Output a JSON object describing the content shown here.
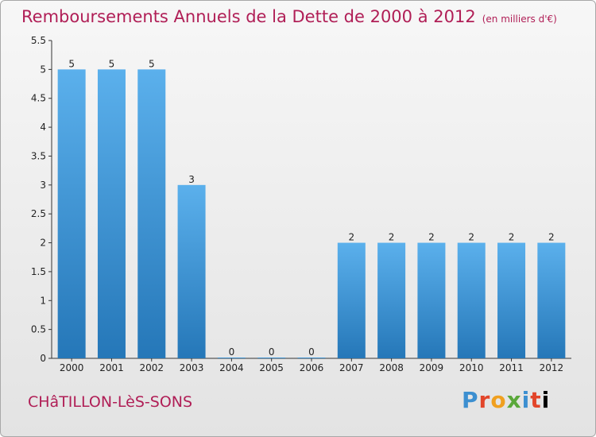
{
  "header": {
    "title": "Remboursements Annuels de la Dette de 2000 à 2012",
    "unit": "(en milliers d'€)"
  },
  "footer": {
    "commune": "CHâTILLON-LèS-SONS",
    "brand": "Proxiti"
  },
  "colors": {
    "title": "#b01e56",
    "bar_top": "#5bb0ec",
    "bar_bottom": "#2577b8"
  },
  "chart_data": {
    "type": "bar",
    "title": "Remboursements Annuels de la Dette de 2000 à 2012",
    "subtitle": "(en milliers d'€)",
    "categories": [
      "2000",
      "2001",
      "2002",
      "2003",
      "2004",
      "2005",
      "2006",
      "2007",
      "2008",
      "2009",
      "2010",
      "2011",
      "2012"
    ],
    "values": [
      5,
      5,
      5,
      3,
      0,
      0,
      0,
      2,
      2,
      2,
      2,
      2,
      2
    ],
    "data_labels": [
      "5",
      "5",
      "5",
      "3",
      "0",
      "0",
      "0",
      "2",
      "2",
      "2",
      "2",
      "2",
      "2"
    ],
    "yticks": [
      "0",
      "0.5",
      "1",
      "1.5",
      "2",
      "2.5",
      "3",
      "3.5",
      "4",
      "4.5",
      "5",
      "5.5"
    ],
    "ylim": [
      0,
      5.5
    ],
    "grid": false,
    "legend": false
  }
}
